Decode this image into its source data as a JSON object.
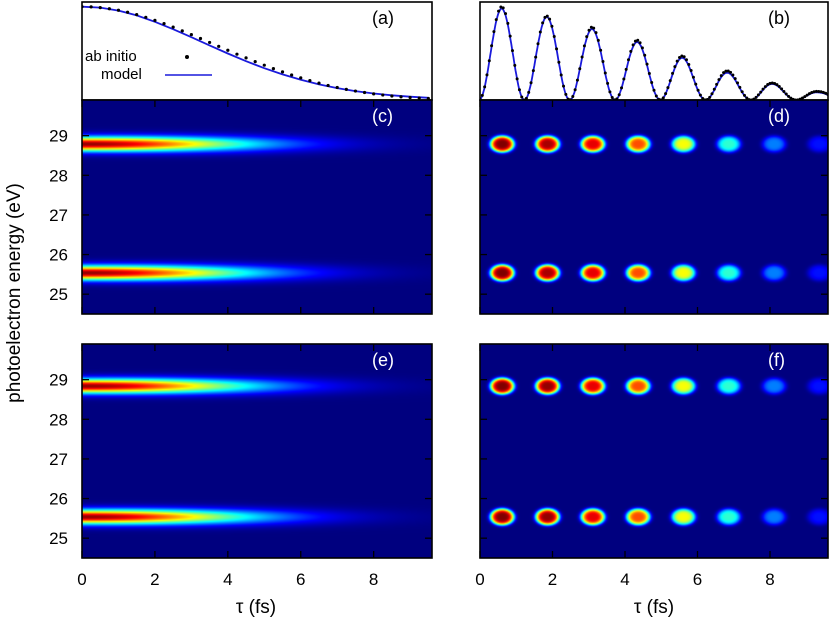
{
  "figure": {
    "ylabel": "photoelectron energy (eV)",
    "xlabel": "τ (fs)"
  },
  "legend": {
    "dots_label": "ab initio",
    "line_label": "model",
    "dots_color": "#000000",
    "line_color": "#1a1adc"
  },
  "chart_data": [
    {
      "panel": "(a)",
      "type": "line",
      "series": [
        {
          "name": "ab initio",
          "style": "dots",
          "x": [
            0,
            0.25,
            0.5,
            0.75,
            1,
            1.25,
            1.5,
            1.75,
            2,
            2.25,
            2.5,
            2.75,
            3,
            3.25,
            3.5,
            3.75,
            4,
            4.25,
            4.5,
            4.75,
            5,
            5.25,
            5.5,
            5.75,
            6,
            6.25,
            6.5,
            6.75,
            7,
            7.25,
            7.5,
            7.75,
            8,
            8.25,
            8.5,
            8.75,
            9,
            9.25,
            9.5
          ],
          "y": [
            1,
            0.998,
            0.99,
            0.978,
            0.962,
            0.94,
            0.915,
            0.886,
            0.853,
            0.818,
            0.781,
            0.741,
            0.701,
            0.659,
            0.617,
            0.575,
            0.533,
            0.491,
            0.451,
            0.411,
            0.373,
            0.336,
            0.301,
            0.268,
            0.237,
            0.208,
            0.181,
            0.156,
            0.134,
            0.114,
            0.096,
            0.08,
            0.066,
            0.054,
            0.043,
            0.034,
            0.027,
            0.021,
            0.016
          ]
        },
        {
          "name": "model",
          "style": "line",
          "x": [
            0,
            0.5,
            1,
            1.5,
            2,
            2.5,
            3,
            3.5,
            4,
            4.5,
            5,
            5.5,
            6,
            6.5,
            7,
            7.5,
            8,
            8.5,
            9,
            9.5
          ],
          "y": [
            1,
            0.99,
            0.958,
            0.906,
            0.838,
            0.759,
            0.673,
            0.585,
            0.498,
            0.416,
            0.341,
            0.274,
            0.216,
            0.167,
            0.127,
            0.095,
            0.07,
            0.05,
            0.035,
            0.024
          ]
        }
      ],
      "xlim": [
        0,
        9.6
      ],
      "ylim": [
        0,
        1.05
      ]
    },
    {
      "panel": "(b)",
      "type": "line",
      "series": [
        {
          "name": "ab initio",
          "style": "dots",
          "peaks_x": [
            0.6,
            1.85,
            3.1,
            4.35,
            5.6,
            6.85,
            8.1,
            9.35
          ],
          "peaks_y": [
            1.0,
            0.9,
            0.78,
            0.64,
            0.47,
            0.31,
            0.18,
            0.09
          ]
        },
        {
          "name": "model",
          "style": "line",
          "peaks_x": [
            0.6,
            1.85,
            3.1,
            4.35,
            5.6,
            6.85,
            8.1,
            9.35
          ],
          "peaks_y": [
            0.98,
            0.89,
            0.76,
            0.62,
            0.45,
            0.29,
            0.17,
            0.08
          ]
        }
      ],
      "period_fs": 1.25,
      "xlim": [
        0,
        9.6
      ],
      "ylim": [
        0,
        1.05
      ]
    },
    {
      "panel": "(c)",
      "type": "heatmap",
      "pattern": "continuous",
      "bands_eV": [
        28.8,
        25.55
      ],
      "band_width_eV": 0.18,
      "decay_fs": 4.6,
      "xlim": [
        0,
        9.6
      ],
      "ylim": [
        24.5,
        29.9
      ]
    },
    {
      "panel": "(d)",
      "type": "heatmap",
      "pattern": "blobs",
      "bands_eV": [
        28.8,
        25.55
      ],
      "blob_centers_fs": [
        0.6,
        1.85,
        3.1,
        4.35,
        5.6,
        6.85,
        8.1,
        9.35
      ],
      "blob_peaks": [
        1.0,
        0.96,
        0.9,
        0.8,
        0.62,
        0.42,
        0.25,
        0.14
      ],
      "xlim": [
        0,
        9.6
      ],
      "ylim": [
        24.5,
        29.9
      ]
    },
    {
      "panel": "(e)",
      "type": "heatmap",
      "pattern": "continuous",
      "bands_eV": [
        28.85,
        25.55
      ],
      "band_width_eV": 0.18,
      "decay_fs": 4.6,
      "xlim": [
        0,
        9.6
      ],
      "ylim": [
        24.5,
        29.9
      ]
    },
    {
      "panel": "(f)",
      "type": "heatmap",
      "pattern": "blobs",
      "bands_eV": [
        28.85,
        25.55
      ],
      "blob_centers_fs": [
        0.6,
        1.85,
        3.1,
        4.35,
        5.6,
        6.85,
        8.1,
        9.35
      ],
      "blob_peaks": [
        1.0,
        0.98,
        0.9,
        0.8,
        0.62,
        0.42,
        0.25,
        0.14
      ],
      "xlim": [
        0,
        9.6
      ],
      "ylim": [
        24.5,
        29.9
      ]
    }
  ],
  "axes": {
    "yticks": [
      25,
      26,
      27,
      28,
      29
    ],
    "ytick_labels": [
      "25",
      "26",
      "27",
      "28",
      "29"
    ],
    "xticks": [
      0,
      2,
      4,
      6,
      8
    ],
    "xtick_labels": [
      "0",
      "2",
      "4",
      "6",
      "8"
    ]
  },
  "colormap": [
    "#00007f",
    "#0000ff",
    "#00ffff",
    "#ffff00",
    "#ff0000",
    "#7f0000"
  ]
}
